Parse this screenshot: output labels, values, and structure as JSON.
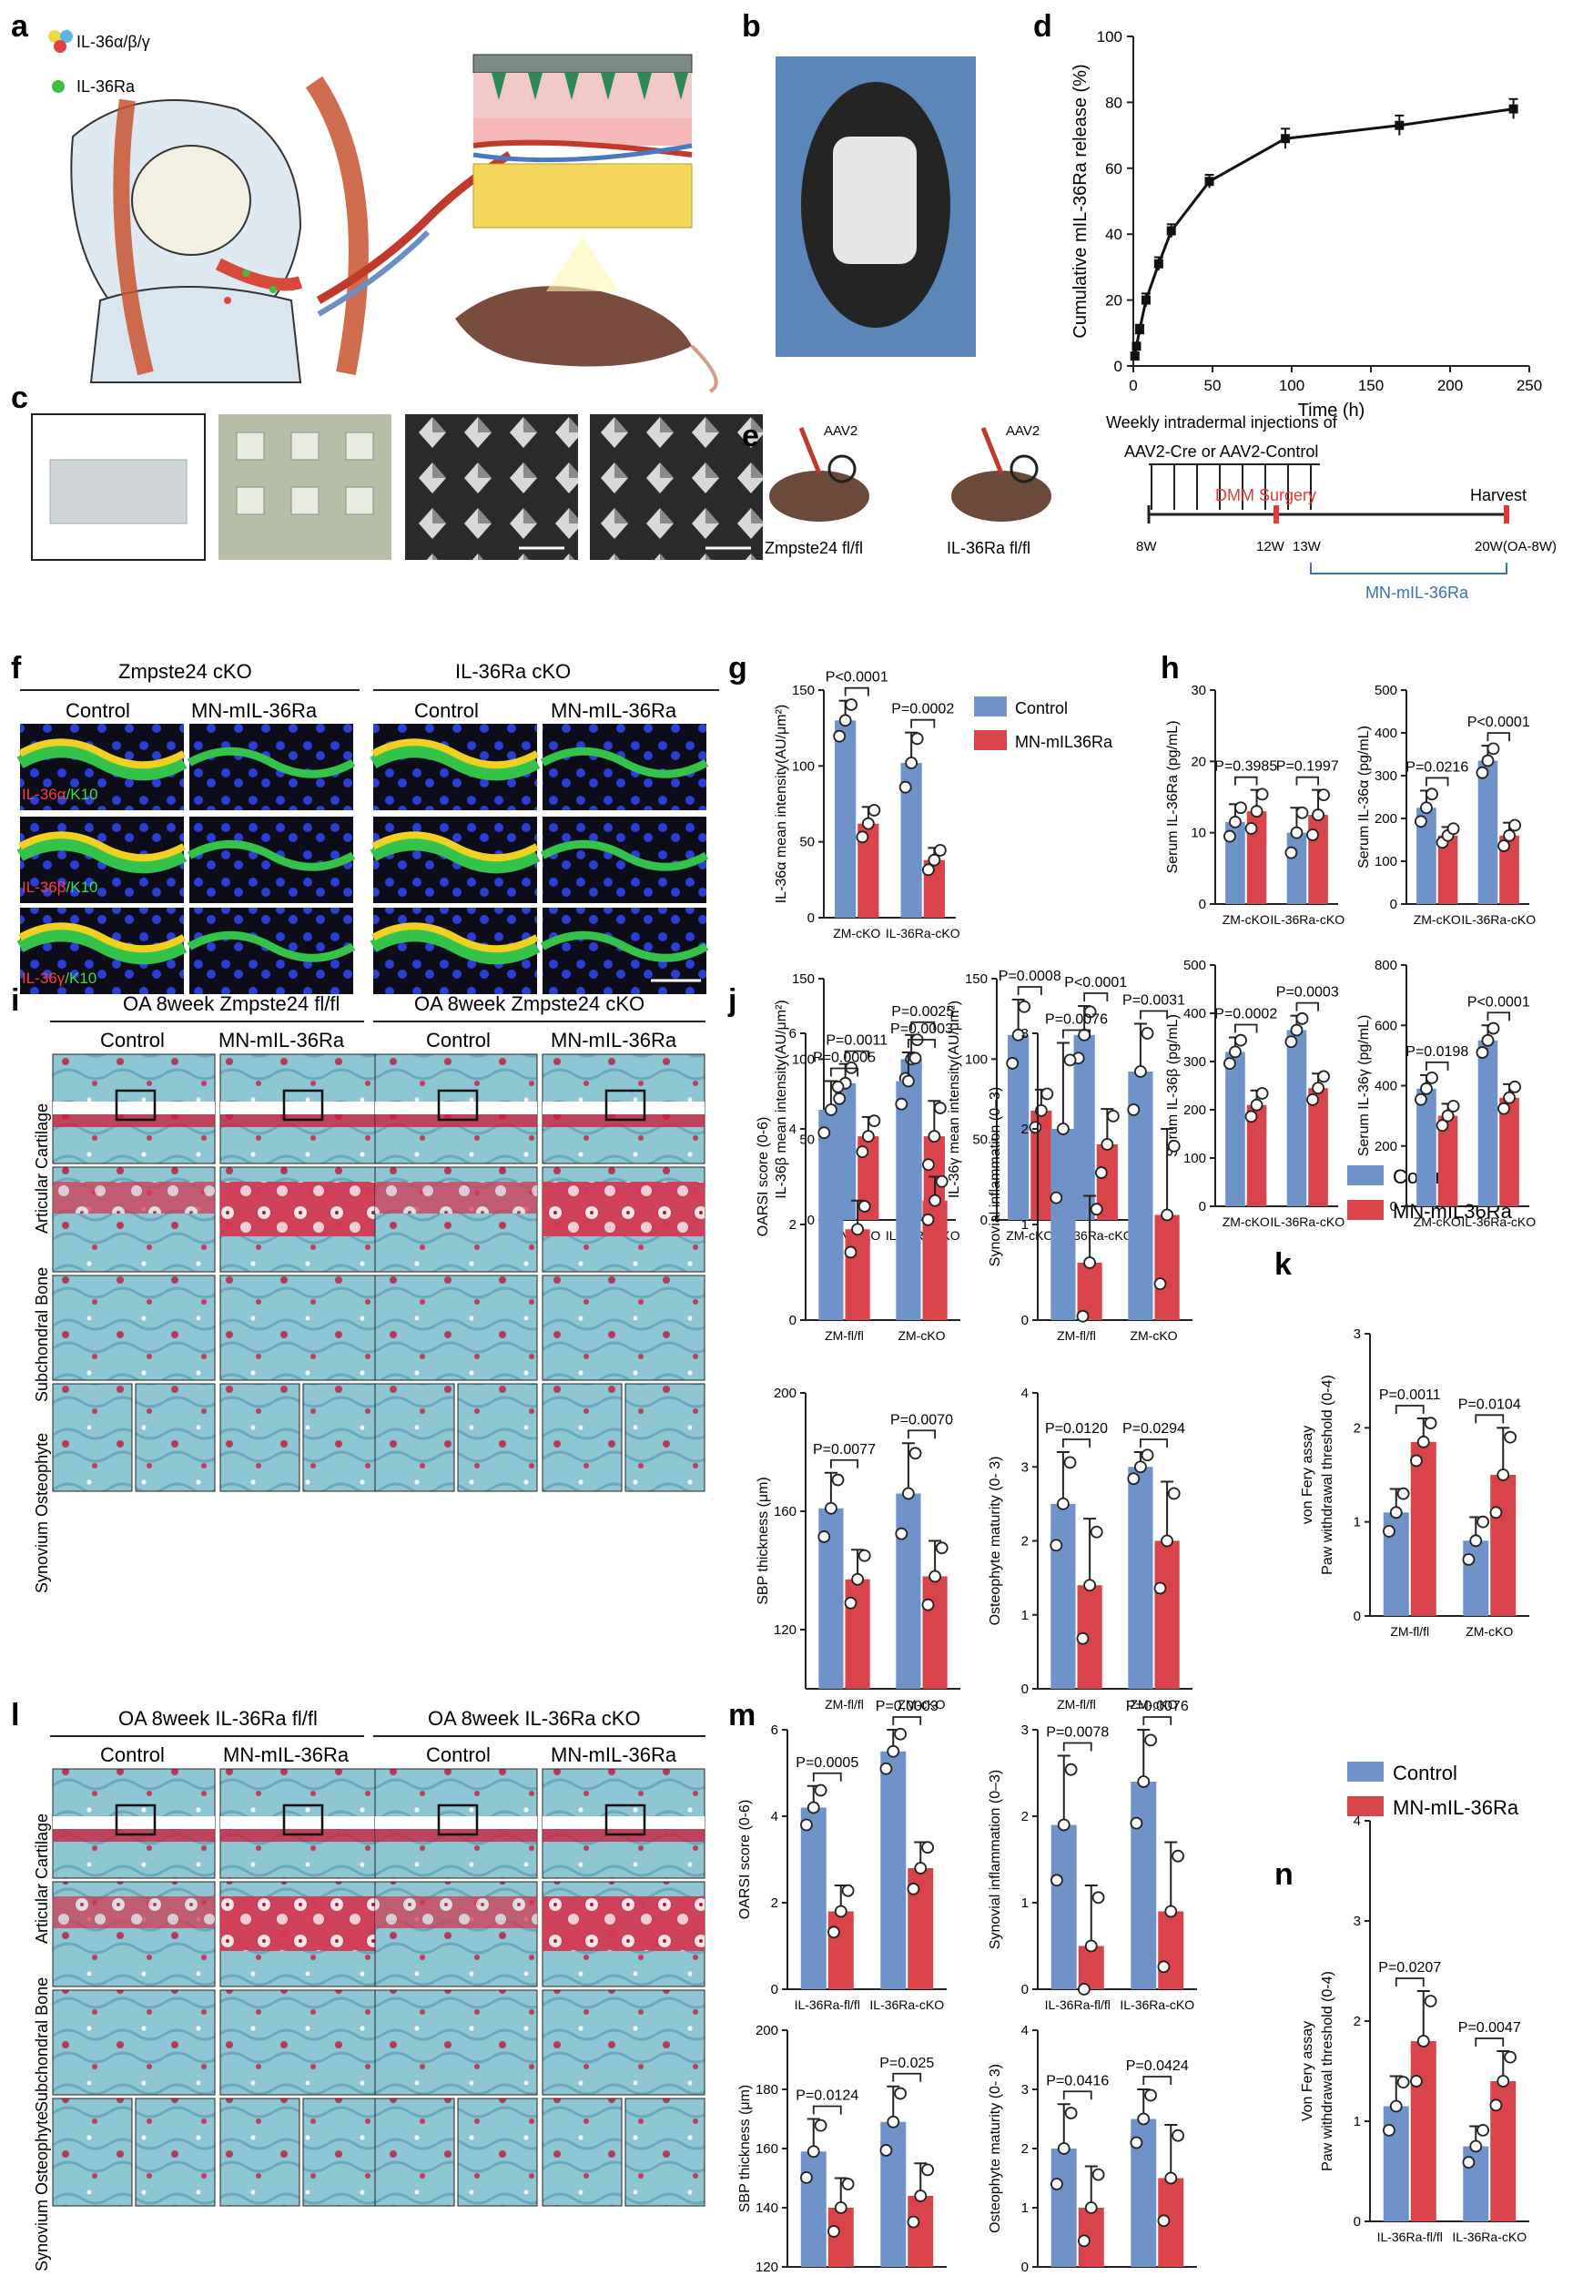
{
  "panels": {
    "a": {
      "label": "a",
      "legend": [
        "IL-36α/β/γ",
        "IL-36Ra"
      ],
      "colors": {
        "cytokine": [
          "#f2d64a",
          "#5bb6e5",
          "#e04040"
        ],
        "antagonist": "#3cbf3c"
      }
    },
    "b": {
      "label": "b"
    },
    "c": {
      "label": "c"
    },
    "d": {
      "label": "d"
    },
    "e": {
      "label": "e",
      "mice": [
        {
          "virus": "AAV2",
          "genotype": "Zmpste24 fl/fl"
        },
        {
          "virus": "AAV2",
          "genotype": "IL-36Ra fl/fl"
        }
      ],
      "injection_text_1": "Weekly intradermal injections of",
      "injection_text_2": "AAV2-Cre or AAV2-Control",
      "surgery": "DMM Surgery",
      "harvest": "Harvest",
      "ticks": [
        "8W",
        "12W",
        "13W",
        "20W(OA-8W)"
      ],
      "treatment": "MN-mIL-36Ra"
    },
    "f": {
      "label": "f",
      "groups": [
        "Zmpste24 cKO",
        "IL-36Ra cKO"
      ],
      "columns": [
        "Control",
        "MN-mIL-36Ra",
        "Control",
        "MN-mIL-36Ra"
      ],
      "row_labels": [
        {
          "stain": "IL-36α",
          "counter": "K10"
        },
        {
          "stain": "IL-36β",
          "counter": "K10"
        },
        {
          "stain": "IL-36γ",
          "counter": "K10"
        }
      ]
    },
    "g": {
      "label": "g",
      "legend": [
        "Control",
        "MN-mIL36Ra"
      ]
    },
    "h": {
      "label": "h"
    },
    "i": {
      "label": "i",
      "groups": [
        "OA 8week  Zmpste24 fl/fl",
        "OA 8week  Zmpste24 cKO"
      ],
      "columns": [
        "Control",
        "MN-mIL-36Ra",
        "Control",
        "MN-mIL-36Ra"
      ],
      "row_labels": [
        "Articular Cartilage",
        "Subchondral Bone",
        "Synovium Osteophyte"
      ]
    },
    "j": {
      "label": "j",
      "legend": [
        "Control",
        "MN-mIL36Ra"
      ]
    },
    "k": {
      "label": "k"
    },
    "l": {
      "label": "l",
      "groups": [
        "OA 8week  IL-36Ra fl/fl",
        "OA 8week  IL-36Ra cKO"
      ],
      "columns": [
        "Control",
        "MN-mIL-36Ra",
        "Control",
        "MN-mIL-36Ra"
      ],
      "row_labels": [
        "Articular Cartilage",
        "Subchondral Bone",
        "Synovium Osteophyte"
      ]
    },
    "m": {
      "label": "m",
      "legend": [
        "Control",
        "MN-mIL-36Ra"
      ]
    },
    "n": {
      "label": "n"
    }
  },
  "colors": {
    "control": "#6f93c9",
    "treated": "#d9434a",
    "sof_blue": "#8ec7d6",
    "sof_red": "#c8233f",
    "if_green": "#33c24a",
    "if_blue": "#2333c8"
  },
  "chart_data": [
    {
      "id": "d",
      "type": "line",
      "ylabel": "Cumulative mIL-36Ra release (%)",
      "xlabel": "Time (h)",
      "xlim": [
        0,
        250
      ],
      "ylim": [
        0,
        100
      ],
      "xticks": [
        0,
        50,
        100,
        150,
        200,
        250
      ],
      "yticks": [
        0,
        20,
        40,
        60,
        80,
        100
      ],
      "x": [
        1,
        2,
        4,
        8,
        16,
        24,
        48,
        96,
        168,
        240
      ],
      "y": [
        3,
        6,
        11,
        20,
        31,
        41,
        56,
        69,
        73,
        78
      ],
      "err": [
        1,
        1,
        1.5,
        2,
        2,
        2,
        2,
        3,
        3,
        3
      ]
    },
    {
      "id": "g1",
      "type": "bar",
      "ylabel": "IL-36α mean intensity(AU/μm²)",
      "categories": [
        "ZM-cKO",
        "IL-36Ra-cKO"
      ],
      "ylim": [
        0,
        150
      ],
      "yticks": [
        0,
        50,
        100,
        150
      ],
      "series": [
        {
          "name": "Control",
          "values": [
            130,
            102
          ],
          "sd": [
            13,
            20
          ]
        },
        {
          "name": "MN-mIL36Ra",
          "values": [
            62,
            38
          ],
          "sd": [
            11,
            8
          ]
        }
      ],
      "pvalues": [
        "P<0.0001",
        "P=0.0002"
      ]
    },
    {
      "id": "g2",
      "type": "bar",
      "ylabel": "IL-36β mean intensity(AU/μm²)",
      "categories": [
        "ZM-cKO",
        "IL-36Ra-cKO"
      ],
      "ylim": [
        0,
        150
      ],
      "yticks": [
        0,
        50,
        100,
        150
      ],
      "series": [
        {
          "name": "Control",
          "values": [
            85,
            100
          ],
          "sd": [
            12,
            15
          ]
        },
        {
          "name": "MN-mIL36Ra",
          "values": [
            52,
            52
          ],
          "sd": [
            12,
            22
          ]
        }
      ],
      "pvalues": [
        "P=0.0011",
        "P=0.0025"
      ]
    },
    {
      "id": "g3",
      "type": "bar",
      "ylabel": "IL-36γ mean intensity(AU/μm²)",
      "categories": [
        "ZM-cKO",
        "IL-36Ra-cKO"
      ],
      "ylim": [
        0,
        150
      ],
      "yticks": [
        0,
        50,
        100,
        150
      ],
      "series": [
        {
          "name": "Control",
          "values": [
            115,
            115
          ],
          "sd": [
            22,
            18
          ]
        },
        {
          "name": "MN-mIL36Ra",
          "values": [
            68,
            47
          ],
          "sd": [
            13,
            22
          ]
        }
      ],
      "pvalues": [
        "P=0.0008",
        "P<0.0001"
      ]
    },
    {
      "id": "h1",
      "type": "bar",
      "ylabel": "Serum IL-36Ra (pg/mL)",
      "categories": [
        "ZM-cKO",
        "IL-36Ra-cKO"
      ],
      "ylim": [
        0,
        30
      ],
      "yticks": [
        0,
        10,
        20,
        30
      ],
      "series": [
        {
          "name": "Control",
          "values": [
            11.5,
            10
          ],
          "sd": [
            2.5,
            3.5
          ]
        },
        {
          "name": "MN-mIL36Ra",
          "values": [
            13,
            12.5
          ],
          "sd": [
            3,
            3.5
          ]
        }
      ],
      "pvalues": [
        "P=0.3985",
        "P=0.1997"
      ]
    },
    {
      "id": "h2",
      "type": "bar",
      "ylabel": "Serum IL-36α (pg/mL)",
      "categories": [
        "ZM-cKO",
        "IL-36Ra-cKO"
      ],
      "ylim": [
        0,
        500
      ],
      "yticks": [
        0,
        100,
        200,
        300,
        400,
        500
      ],
      "series": [
        {
          "name": "Control",
          "values": [
            225,
            335
          ],
          "sd": [
            40,
            35
          ]
        },
        {
          "name": "MN-mIL36Ra",
          "values": [
            160,
            160
          ],
          "sd": [
            20,
            30
          ]
        }
      ],
      "pvalues": [
        "P=0.0216",
        "P<0.0001"
      ]
    },
    {
      "id": "h3",
      "type": "bar",
      "ylabel": "Serum IL-36β (pg/mL)",
      "categories": [
        "ZM-cKO",
        "IL-36Ra-cKO"
      ],
      "ylim": [
        0,
        500
      ],
      "yticks": [
        0,
        100,
        200,
        300,
        400,
        500
      ],
      "series": [
        {
          "name": "Control",
          "values": [
            320,
            365
          ],
          "sd": [
            30,
            30
          ]
        },
        {
          "name": "MN-mIL36Ra",
          "values": [
            210,
            245
          ],
          "sd": [
            30,
            30
          ]
        }
      ],
      "pvalues": [
        "P=0.0002",
        "P=0.0003"
      ]
    },
    {
      "id": "h4",
      "type": "bar",
      "ylabel": "Serum IL-36γ (pg/mL)",
      "categories": [
        "ZM-cKO",
        "IL-36Ra-cKO"
      ],
      "ylim": [
        0,
        800
      ],
      "yticks": [
        0,
        200,
        400,
        600,
        800
      ],
      "series": [
        {
          "name": "Control",
          "values": [
            390,
            550
          ],
          "sd": [
            45,
            50
          ]
        },
        {
          "name": "MN-mIL36Ra",
          "values": [
            300,
            360
          ],
          "sd": [
            40,
            45
          ]
        }
      ],
      "pvalues": [
        "P=0.0198",
        "P<0.0001"
      ]
    },
    {
      "id": "j1",
      "type": "bar",
      "ylabel": "OARSI score (0-6)",
      "categories": [
        "ZM-fl/fl",
        "ZM-cKO"
      ],
      "ylim": [
        0,
        6
      ],
      "yticks": [
        0,
        2,
        4,
        6
      ],
      "series": [
        {
          "name": "Control",
          "values": [
            4.4,
            5.0
          ],
          "sd": [
            0.6,
            0.6
          ]
        },
        {
          "name": "MN-mIL36Ra",
          "values": [
            1.9,
            2.5
          ],
          "sd": [
            0.6,
            0.5
          ]
        }
      ],
      "pvalues": [
        "P=0.0005",
        "P=0.0003"
      ]
    },
    {
      "id": "j2",
      "type": "bar",
      "ylabel": "Synovial inflammation (0–3)",
      "categories": [
        "ZM-fl/fl",
        "ZM-cKO"
      ],
      "ylim": [
        0,
        3
      ],
      "yticks": [
        0,
        1,
        2,
        3
      ],
      "series": [
        {
          "name": "Control",
          "values": [
            2.0,
            2.6
          ],
          "sd": [
            0.9,
            0.5
          ]
        },
        {
          "name": "MN-mIL36Ra",
          "values": [
            0.6,
            1.1
          ],
          "sd": [
            0.7,
            0.9
          ]
        }
      ],
      "pvalues": [
        "P=0.0076",
        "P=0.0031"
      ]
    },
    {
      "id": "j3",
      "type": "bar",
      "ylabel": "SBP thickness (μm)",
      "categories": [
        "ZM-fl/fl",
        "ZM-cKO"
      ],
      "ylim": [
        100,
        200
      ],
      "yticks": [
        120,
        160,
        200
      ],
      "series": [
        {
          "name": "Control",
          "values": [
            161,
            166
          ],
          "sd": [
            12,
            17
          ]
        },
        {
          "name": "MN-mIL36Ra",
          "values": [
            137,
            138
          ],
          "sd": [
            10,
            12
          ]
        }
      ],
      "pvalues": [
        "P=0.0077",
        "P=0.0070"
      ]
    },
    {
      "id": "j4",
      "type": "bar",
      "ylabel": "Osteophyte maturity (0- 3)",
      "categories": [
        "ZM-fl/fl",
        "ZM-cKO"
      ],
      "ylim": [
        0,
        4
      ],
      "yticks": [
        0,
        1,
        2,
        3,
        4
      ],
      "series": [
        {
          "name": "Control",
          "values": [
            2.5,
            3.0
          ],
          "sd": [
            0.7,
            0.2
          ]
        },
        {
          "name": "MN-mIL36Ra",
          "values": [
            1.4,
            2.0
          ],
          "sd": [
            0.9,
            0.8
          ]
        }
      ],
      "pvalues": [
        "P=0.0120",
        "P=0.0294"
      ]
    },
    {
      "id": "k",
      "type": "bar",
      "ylabel": "von Fery assay\nPaw withdrawal threshold (0-4)",
      "categories": [
        "ZM-fl/fl",
        "ZM-cKO"
      ],
      "ylim": [
        0,
        3
      ],
      "yticks": [
        0,
        1,
        2,
        3
      ],
      "series": [
        {
          "name": "Control",
          "values": [
            1.1,
            0.8
          ],
          "sd": [
            0.25,
            0.25
          ]
        },
        {
          "name": "MN-mIL36Ra",
          "values": [
            1.85,
            1.5
          ],
          "sd": [
            0.25,
            0.5
          ]
        }
      ],
      "pvalues": [
        "P=0.0011",
        "P=0.0104"
      ]
    },
    {
      "id": "m1",
      "type": "bar",
      "ylabel": "OARSI score (0-6)",
      "categories": [
        "IL-36Ra-fl/fl",
        "IL-36Ra-cKO"
      ],
      "ylim": [
        0,
        6
      ],
      "yticks": [
        0,
        2,
        4,
        6
      ],
      "series": [
        {
          "name": "Control",
          "values": [
            4.2,
            5.5
          ],
          "sd": [
            0.5,
            0.5
          ]
        },
        {
          "name": "MN-mIL-36Ra",
          "values": [
            1.8,
            2.8
          ],
          "sd": [
            0.6,
            0.6
          ]
        }
      ],
      "pvalues": [
        "P=0.0005",
        "P=0.0003"
      ]
    },
    {
      "id": "m2",
      "type": "bar",
      "ylabel": "Synovial inflammation (0–3)",
      "categories": [
        "IL-36Ra-fl/fl",
        "IL-36Ra-cKO"
      ],
      "ylim": [
        0,
        3
      ],
      "yticks": [
        0,
        1,
        2,
        3
      ],
      "series": [
        {
          "name": "Control",
          "values": [
            1.9,
            2.4
          ],
          "sd": [
            0.8,
            0.6
          ]
        },
        {
          "name": "MN-mIL-36Ra",
          "values": [
            0.5,
            0.9
          ],
          "sd": [
            0.7,
            0.8
          ]
        }
      ],
      "pvalues": [
        "P=0.0078",
        "P=0.0076"
      ]
    },
    {
      "id": "m3",
      "type": "bar",
      "ylabel": "SBP thickness (μm)",
      "categories": [
        "IL-36Ra-fl/fl",
        "IL-36Ra-cKO"
      ],
      "ylim": [
        120,
        200
      ],
      "yticks": [
        120,
        140,
        160,
        180,
        200
      ],
      "series": [
        {
          "name": "Control",
          "values": [
            159,
            169
          ],
          "sd": [
            11,
            12
          ]
        },
        {
          "name": "MN-mIL-36Ra",
          "values": [
            140,
            144
          ],
          "sd": [
            10,
            11
          ]
        }
      ],
      "pvalues": [
        "P=0.0124",
        "P=0.025"
      ]
    },
    {
      "id": "m4",
      "type": "bar",
      "ylabel": "Osteophyte maturity (0- 3)",
      "categories": [
        "IL-36Ra-fl/fl",
        "IL-36Ra-cKO"
      ],
      "ylim": [
        0,
        4
      ],
      "yticks": [
        0,
        1,
        2,
        3,
        4
      ],
      "series": [
        {
          "name": "Control",
          "values": [
            2.0,
            2.5
          ],
          "sd": [
            0.75,
            0.5
          ]
        },
        {
          "name": "MN-mIL-36Ra",
          "values": [
            1.0,
            1.5
          ],
          "sd": [
            0.7,
            0.9
          ]
        }
      ],
      "pvalues": [
        "P=0.0416",
        "P=0.0424"
      ]
    },
    {
      "id": "n",
      "type": "bar",
      "ylabel": "Von Fery assay\nPaw withdrawal threshold (0-4)",
      "categories": [
        "IL-36Ra-fl/fl",
        "IL-36Ra-cKO"
      ],
      "ylim": [
        0,
        3
      ],
      "yticks": [
        0,
        1,
        2,
        3,
        4
      ],
      "series": [
        {
          "name": "Control",
          "values": [
            1.15,
            0.75
          ],
          "sd": [
            0.3,
            0.2
          ]
        },
        {
          "name": "MN-mIL-36Ra",
          "values": [
            1.8,
            1.4
          ],
          "sd": [
            0.5,
            0.3
          ]
        }
      ],
      "pvalues": [
        "P=0.0207",
        "P=0.0047"
      ]
    }
  ]
}
